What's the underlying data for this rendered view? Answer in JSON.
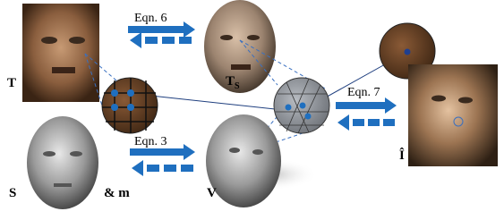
{
  "labels": {
    "texture": "T",
    "textured_mesh": "T",
    "textured_mesh_sub": "S",
    "shape": "S",
    "mask": "& m",
    "vertices": "V",
    "image": "Î"
  },
  "equations": {
    "top": "Eqn. 6",
    "bottom": "Eqn. 3",
    "right": "Eqn. 7"
  }
}
